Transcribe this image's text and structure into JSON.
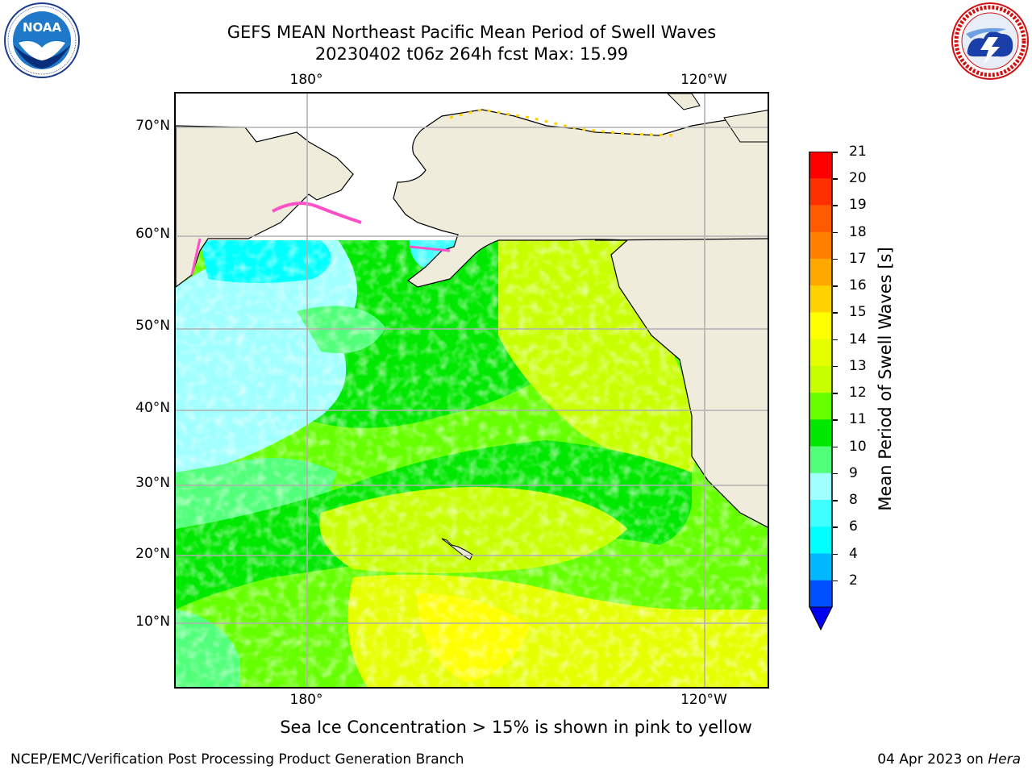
{
  "header": {
    "title_line1": "GEFS MEAN Northeast Pacific Mean Period of Swell Waves",
    "title_line2": "20230402 t06z 264h fcst   Max: 15.99"
  },
  "logos": {
    "left": {
      "name": "noaa-logo",
      "text": "NOAA",
      "ring_text": "NATIONAL OCEANIC AND ATMOSPHERIC ADMINISTRATION · U.S. DEPARTMENT OF COMMERCE"
    },
    "right": {
      "name": "nws-logo",
      "ring_text": "NATIONAL WEATHER SERVICE"
    }
  },
  "map": {
    "top_lon_ticks": [
      "180°",
      "120°W"
    ],
    "bottom_lon_ticks": [
      "180°",
      "120°W"
    ],
    "lat_ticks": [
      "70°N",
      "60°N",
      "50°N",
      "40°N",
      "30°N",
      "20°N",
      "10°N"
    ],
    "land_color": "#efecdc",
    "grid_color": "#b0b0b0"
  },
  "colorbar": {
    "title": "Mean Period of Swell Waves [s]",
    "levels": [
      "21",
      "20",
      "19",
      "18",
      "17",
      "16",
      "15",
      "14",
      "13",
      "12",
      "11",
      "10",
      "9",
      "8",
      "6",
      "4",
      "2"
    ],
    "colors": [
      "#ff0000",
      "#ff3000",
      "#ff5a00",
      "#ff8000",
      "#ffa800",
      "#ffd200",
      "#ffff00",
      "#e6ff00",
      "#c8ff00",
      "#66ff00",
      "#00e800",
      "#52ff7a",
      "#a0ffff",
      "#40ffff",
      "#00ffff",
      "#00b8ff",
      "#0050ff"
    ],
    "under_color": "#0000ee"
  },
  "note": "Sea Ice Concentration > 15% is shown in pink to yellow",
  "footer": {
    "left": "NCEP/EMC/Verification Post Processing Product Generation Branch",
    "date": "04 Apr 2023 on",
    "host": "Hera"
  }
}
